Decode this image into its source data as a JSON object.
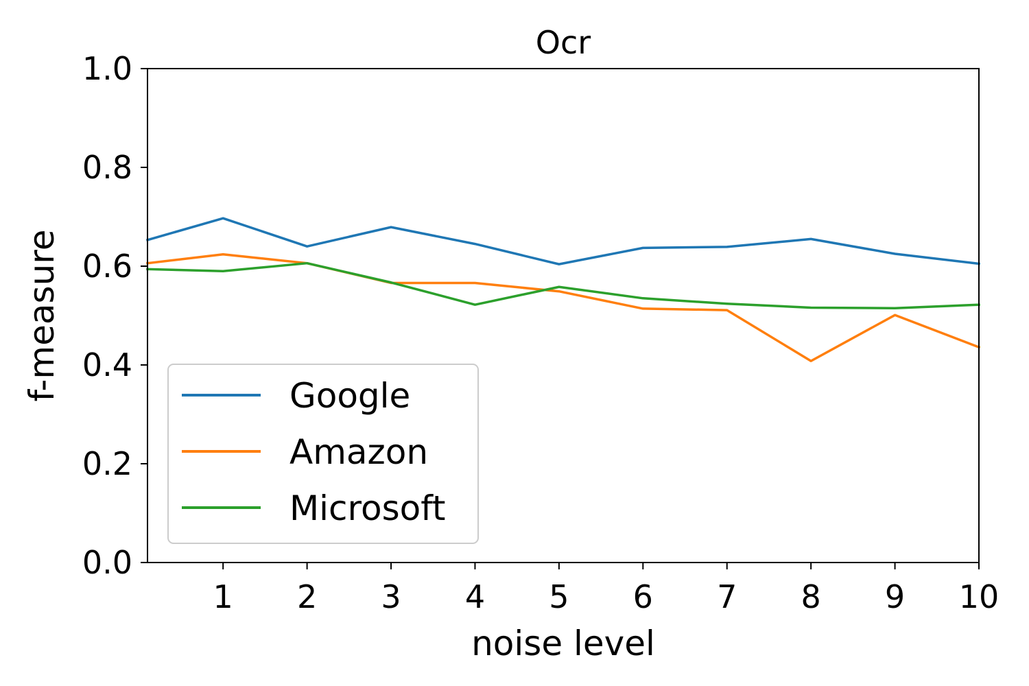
{
  "chart_data": {
    "type": "line",
    "title": "Ocr",
    "xlabel": "noise level",
    "ylabel": "f-measure",
    "xlim": [
      0.1,
      10
    ],
    "ylim": [
      0,
      1
    ],
    "xticks": [
      1,
      2,
      3,
      4,
      5,
      6,
      7,
      8,
      9,
      10
    ],
    "yticks": [
      0.0,
      0.2,
      0.4,
      0.6,
      0.8,
      1.0
    ],
    "grid": false,
    "legend": "lower-left",
    "x": [
      0.1,
      1,
      2,
      3,
      4,
      5,
      6,
      7,
      8,
      9,
      10
    ],
    "series": [
      {
        "name": "Google",
        "color": "#1f77b4",
        "values": [
          0.653,
          0.697,
          0.64,
          0.679,
          0.645,
          0.604,
          0.637,
          0.639,
          0.655,
          0.625,
          0.605
        ]
      },
      {
        "name": "Amazon",
        "color": "#ff7f0e",
        "values": [
          0.606,
          0.624,
          0.606,
          0.566,
          0.566,
          0.549,
          0.514,
          0.511,
          0.408,
          0.501,
          0.436
        ]
      },
      {
        "name": "Microsoft",
        "color": "#2ca02c",
        "values": [
          0.594,
          0.59,
          0.606,
          0.567,
          0.522,
          0.558,
          0.535,
          0.524,
          0.516,
          0.515,
          0.522
        ]
      }
    ]
  }
}
